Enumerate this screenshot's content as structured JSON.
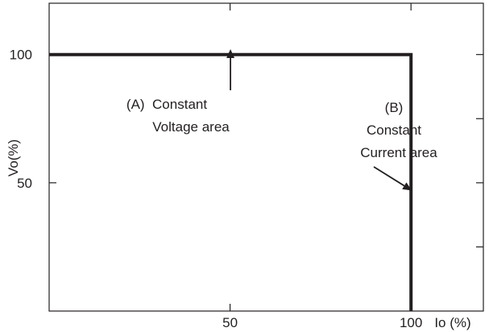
{
  "chart_data": {
    "type": "line",
    "xlabel": "Io (%)",
    "ylabel": "Vo(%)",
    "xlim": [
      0,
      120
    ],
    "ylim": [
      0,
      120
    ],
    "x_ticks": [
      {
        "value": 50,
        "label": "50"
      },
      {
        "value": 100,
        "label": "100"
      }
    ],
    "y_ticks": [
      {
        "value": 50,
        "label": "50"
      },
      {
        "value": 100,
        "label": "100"
      }
    ],
    "right_ticks": [
      25,
      50,
      75,
      100
    ],
    "top_ticks": [
      50,
      100
    ],
    "grid": false,
    "series": [
      {
        "x": [
          0,
          100,
          100
        ],
        "y": [
          100,
          100,
          0
        ],
        "color": "#231f20"
      }
    ],
    "annotations": [
      {
        "id": "a",
        "lines": [
          "(A)  Constant",
          "Voltage area"
        ],
        "arrow_to": [
          50,
          100
        ]
      },
      {
        "id": "b",
        "lines": [
          "(B)",
          "Constant",
          "Current area"
        ],
        "arrow_to": [
          100,
          47
        ]
      }
    ]
  }
}
